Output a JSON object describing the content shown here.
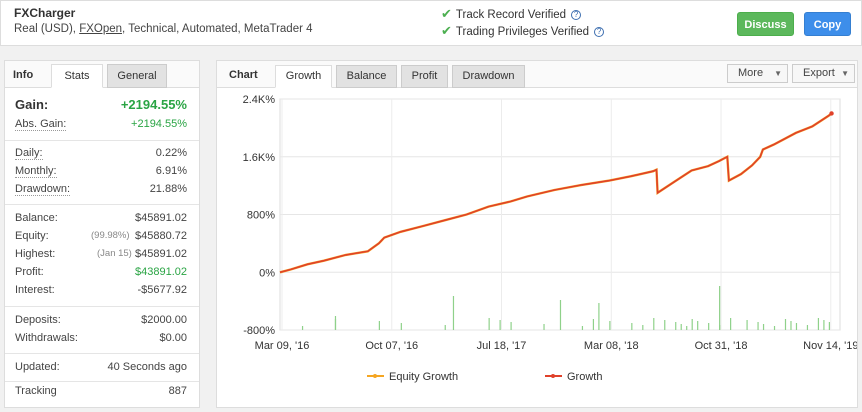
{
  "account": {
    "name": "FXCharger",
    "type_prefix": "Real (USD), ",
    "broker": "FXOpen",
    "details": ", Technical, Automated, MetaTrader 4"
  },
  "verifications": [
    {
      "label": "Track Record Verified"
    },
    {
      "label": "Trading Privileges Verified"
    }
  ],
  "buttons": {
    "discuss": "Discuss",
    "copy": "Copy"
  },
  "left_tabs": {
    "title": "Info",
    "stats": "Stats",
    "general": "General"
  },
  "stats": {
    "gain": {
      "label": "Gain:",
      "value": "+2194.55%"
    },
    "abs_gain": {
      "label": "Abs. Gain:",
      "value": "+2194.55%"
    },
    "daily": {
      "label": "Daily:",
      "value": "0.22%"
    },
    "monthly": {
      "label": "Monthly:",
      "value": "6.91%"
    },
    "drawdown": {
      "label": "Drawdown:",
      "value": "21.88%"
    },
    "balance": {
      "label": "Balance:",
      "value": "$45891.02"
    },
    "equity": {
      "label": "Equity:",
      "note": "(99.98%)",
      "value": "$45880.72"
    },
    "highest": {
      "label": "Highest:",
      "note": "(Jan 15)",
      "value": "$45891.02"
    },
    "profit": {
      "label": "Profit:",
      "value": "$43891.02"
    },
    "interest": {
      "label": "Interest:",
      "value": "-$5677.92"
    },
    "deposits": {
      "label": "Deposits:",
      "value": "$2000.00"
    },
    "withdrawals": {
      "label": "Withdrawals:",
      "value": "$0.00"
    },
    "updated": {
      "label": "Updated:",
      "value": "40 Seconds ago"
    },
    "tracking": {
      "label": "Tracking",
      "value": "887"
    }
  },
  "right_tabs": {
    "title": "Chart",
    "growth": "Growth",
    "balance": "Balance",
    "profit": "Profit",
    "drawdown": "Drawdown"
  },
  "dropdowns": {
    "more": "More",
    "export": "Export"
  },
  "chart_data": {
    "type": "line",
    "xlabels": [
      "Mar 09, '16",
      "Oct 07, '16",
      "Jul 18, '17",
      "Mar 08, '18",
      "Oct 31, '18",
      "Nov 14, '19"
    ],
    "yticks": [
      "2.4K%",
      "1.6K%",
      "800%",
      "0%",
      "-800%"
    ],
    "ylim": [
      -800,
      2400
    ],
    "legend": [
      "Equity Growth",
      "Growth"
    ],
    "colors": {
      "equity": "#f5a623",
      "growth": "#e0412a",
      "volume": "#8fd18a"
    },
    "series": [
      {
        "name": "Growth",
        "points": [
          [
            0,
            0
          ],
          [
            0.02,
            40
          ],
          [
            0.05,
            110
          ],
          [
            0.08,
            160
          ],
          [
            0.12,
            240
          ],
          [
            0.16,
            290
          ],
          [
            0.18,
            400
          ],
          [
            0.19,
            480
          ],
          [
            0.22,
            560
          ],
          [
            0.26,
            640
          ],
          [
            0.3,
            720
          ],
          [
            0.34,
            800
          ],
          [
            0.38,
            910
          ],
          [
            0.42,
            980
          ],
          [
            0.45,
            1050
          ],
          [
            0.5,
            1140
          ],
          [
            0.55,
            1210
          ],
          [
            0.6,
            1270
          ],
          [
            0.64,
            1330
          ],
          [
            0.68,
            1400
          ],
          [
            0.686,
            1420
          ],
          [
            0.688,
            1100
          ],
          [
            0.72,
            1260
          ],
          [
            0.75,
            1410
          ],
          [
            0.78,
            1470
          ],
          [
            0.8,
            1540
          ],
          [
            0.81,
            1580
          ],
          [
            0.815,
            1600
          ],
          [
            0.818,
            1270
          ],
          [
            0.84,
            1360
          ],
          [
            0.86,
            1480
          ],
          [
            0.875,
            1600
          ],
          [
            0.88,
            1700
          ],
          [
            0.9,
            1770
          ],
          [
            0.94,
            1930
          ],
          [
            0.97,
            2020
          ],
          [
            1.0,
            2170
          ],
          [
            1.005,
            2200
          ]
        ]
      }
    ],
    "volume_bars": [
      0.04,
      0.1,
      0.18,
      0.22,
      0.3,
      0.38,
      0.4,
      0.42,
      0.48,
      0.55,
      0.57,
      0.6,
      0.64,
      0.66,
      0.68,
      0.7,
      0.72,
      0.73,
      0.74,
      0.75,
      0.76,
      0.78,
      0.8,
      0.82,
      0.85,
      0.87,
      0.88,
      0.9,
      0.92,
      0.93,
      0.94,
      0.96,
      0.98,
      0.99,
      1.0
    ],
    "volume_tall": [
      0.315,
      0.58,
      0.51,
      0.8,
      0.1
    ]
  }
}
